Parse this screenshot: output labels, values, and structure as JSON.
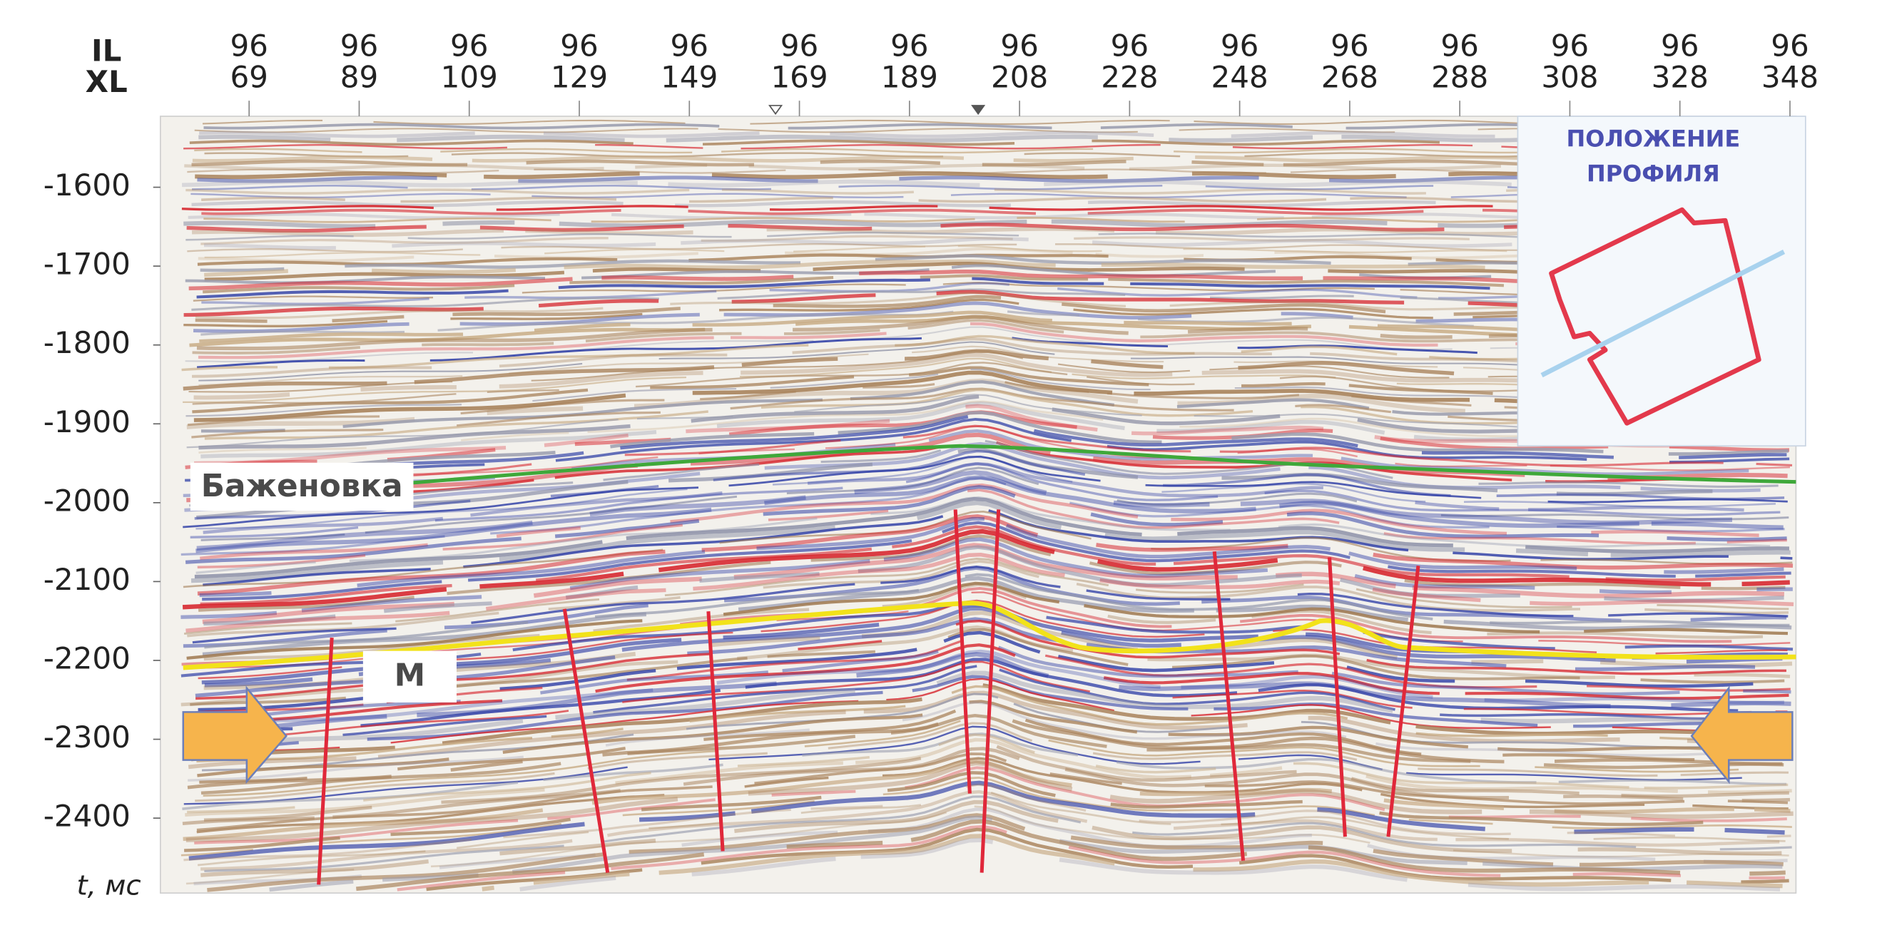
{
  "axes": {
    "x_label_top": "IL",
    "x_label_bottom": "XL",
    "y_label": "t, мс",
    "ylim": [
      -1510,
      -2495
    ],
    "yticks": [
      -1600,
      -1700,
      -1800,
      -1900,
      -2000,
      -2100,
      -2200,
      -2300,
      -2400
    ],
    "xticks": [
      {
        "il": 96,
        "xl": 69
      },
      {
        "il": 96,
        "xl": 89
      },
      {
        "il": 96,
        "xl": 109
      },
      {
        "il": 96,
        "xl": 129
      },
      {
        "il": 96,
        "xl": 149
      },
      {
        "il": 96,
        "xl": 169
      },
      {
        "il": 96,
        "xl": 189
      },
      {
        "il": 96,
        "xl": 208
      },
      {
        "il": 96,
        "xl": 228
      },
      {
        "il": 96,
        "xl": 248
      },
      {
        "il": 96,
        "xl": 268
      },
      {
        "il": 96,
        "xl": 288
      },
      {
        "il": 96,
        "xl": 308
      },
      {
        "il": 96,
        "xl": 328
      },
      {
        "il": 96,
        "xl": 348
      }
    ]
  },
  "annotations": {
    "horizon_1": "Баженовка",
    "horizon_2": "М"
  },
  "inset": {
    "title_lines": [
      "ПОЛОЖЕНИЕ",
      "ПРОФИЛЯ"
    ]
  }
}
